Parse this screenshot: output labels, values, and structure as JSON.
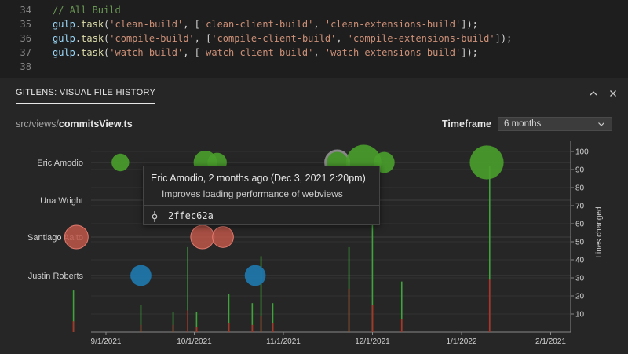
{
  "editor": {
    "lines": [
      {
        "num": "34",
        "tokens": [
          {
            "t": "    // All Build",
            "c": "comment"
          }
        ]
      },
      {
        "num": "35",
        "tokens": [
          {
            "t": "    gulp",
            "c": "ident"
          },
          {
            "t": ".",
            "c": "punc"
          },
          {
            "t": "task",
            "c": "fn"
          },
          {
            "t": "(",
            "c": "punc"
          },
          {
            "t": "'clean-build'",
            "c": "str"
          },
          {
            "t": ", [",
            "c": "punc"
          },
          {
            "t": "'clean-client-build'",
            "c": "str"
          },
          {
            "t": ", ",
            "c": "punc"
          },
          {
            "t": "'clean-extensions-build'",
            "c": "str"
          },
          {
            "t": "]);",
            "c": "punc"
          }
        ]
      },
      {
        "num": "36",
        "tokens": [
          {
            "t": "    gulp",
            "c": "ident"
          },
          {
            "t": ".",
            "c": "punc"
          },
          {
            "t": "task",
            "c": "fn"
          },
          {
            "t": "(",
            "c": "punc"
          },
          {
            "t": "'compile-build'",
            "c": "str"
          },
          {
            "t": ", [",
            "c": "punc"
          },
          {
            "t": "'compile-client-build'",
            "c": "str"
          },
          {
            "t": ", ",
            "c": "punc"
          },
          {
            "t": "'compile-extensions-build'",
            "c": "str"
          },
          {
            "t": "]);",
            "c": "punc"
          }
        ]
      },
      {
        "num": "37",
        "tokens": [
          {
            "t": "    gulp",
            "c": "ident"
          },
          {
            "t": ".",
            "c": "punc"
          },
          {
            "t": "task",
            "c": "fn"
          },
          {
            "t": "(",
            "c": "punc"
          },
          {
            "t": "'watch-build'",
            "c": "str"
          },
          {
            "t": ", [",
            "c": "punc"
          },
          {
            "t": "'watch-client-build'",
            "c": "str"
          },
          {
            "t": ", ",
            "c": "punc"
          },
          {
            "t": "'watch-extensions-build'",
            "c": "str"
          },
          {
            "t": "]);",
            "c": "punc"
          }
        ]
      },
      {
        "num": "38",
        "tokens": []
      }
    ]
  },
  "panel": {
    "title": "GITLENS: VISUAL FILE HISTORY",
    "path_dir": "src/views/",
    "path_file": "commitsView.ts",
    "timeframe_label": "Timeframe",
    "timeframe_value": "6 months",
    "collapse_icon": "chevron-up-icon",
    "close_icon": "close-icon"
  },
  "tooltip": {
    "title": "Eric Amodio, 2 months ago (Dec 3, 2021 2:20pm)",
    "message": "Improves loading performance of webviews",
    "sha": "2ffec62a",
    "icon": "git-commit-icon"
  },
  "colors": {
    "Eric Amodio": "#4aa02c",
    "Una Wright": "#8e44ad",
    "Santiago Aalto": "#c0574a",
    "Justin Roberts": "#1f7ab0",
    "additions": "#3fa53a",
    "deletions": "#b2322a"
  },
  "chart_data": {
    "type": "scatter",
    "authors": [
      "Eric Amodio",
      "Una Wright",
      "Santiago Aalto",
      "Justin Roberts"
    ],
    "x_range": [
      "2021-09-01",
      "2022-01-01"
    ],
    "x_ticks": [
      "9/1/2021",
      "10/1/2021",
      "11/1/2021",
      "12/1/2021",
      "1/1/2022",
      "2/1/2021"
    ],
    "y2_label": "Lines changed",
    "y2_range": [
      0,
      105
    ],
    "y2_ticks": [
      10,
      20,
      30,
      40,
      50,
      60,
      70,
      80,
      90,
      100
    ],
    "commits": [
      {
        "author": "Eric Amodio",
        "date": "2021-09-11",
        "added": 0,
        "deleted": 0,
        "bubble": 1
      },
      {
        "author": "Eric Amodio",
        "date": "2021-10-10",
        "added": 0,
        "deleted": 0,
        "bubble": 3
      },
      {
        "author": "Eric Amodio",
        "date": "2021-10-14",
        "added": 0,
        "deleted": 0,
        "bubble": 1.5
      },
      {
        "author": "Eric Amodio",
        "date": "2021-11-24",
        "added": 0,
        "deleted": 0,
        "bubble": 3
      },
      {
        "author": "Eric Amodio",
        "date": "2021-12-03",
        "added": 0,
        "deleted": 0,
        "bubble": 10
      },
      {
        "author": "Eric Amodio",
        "date": "2021-12-10",
        "added": 0,
        "deleted": 0,
        "bubble": 2
      },
      {
        "author": "Eric Amodio",
        "date": "2022-01-14",
        "added": 0,
        "deleted": 0,
        "bubble": 9
      },
      {
        "author": "Santiago Aalto",
        "date": "2021-08-27",
        "added": 0,
        "deleted": 0,
        "bubble": 3
      },
      {
        "author": "Santiago Aalto",
        "date": "2021-10-09",
        "added": 0,
        "deleted": 0,
        "bubble": 3
      },
      {
        "author": "Santiago Aalto",
        "date": "2021-10-16",
        "added": 0,
        "deleted": 0,
        "bubble": 2
      },
      {
        "author": "Justin Roberts",
        "date": "2021-09-18",
        "added": 0,
        "deleted": 0,
        "bubble": 2
      },
      {
        "author": "Justin Roberts",
        "date": "2021-10-27",
        "added": 0,
        "deleted": 0,
        "bubble": 2
      }
    ],
    "bars": [
      {
        "date": "2021-08-26",
        "added": 23,
        "deleted": 6
      },
      {
        "date": "2021-09-18",
        "added": 15,
        "deleted": 4
      },
      {
        "date": "2021-09-29",
        "added": 11,
        "deleted": 4
      },
      {
        "date": "2021-10-04",
        "added": 47,
        "deleted": 12
      },
      {
        "date": "2021-10-07",
        "added": 11,
        "deleted": 3
      },
      {
        "date": "2021-10-18",
        "added": 21,
        "deleted": 5
      },
      {
        "date": "2021-10-26",
        "added": 16,
        "deleted": 4
      },
      {
        "date": "2021-10-29",
        "added": 42,
        "deleted": 9
      },
      {
        "date": "2021-11-02",
        "added": 16,
        "deleted": 5
      },
      {
        "date": "2021-11-28",
        "added": 47,
        "deleted": 24
      },
      {
        "date": "2021-12-06",
        "added": 90,
        "deleted": 15
      },
      {
        "date": "2021-12-16",
        "added": 28,
        "deleted": 7
      },
      {
        "date": "2022-01-15",
        "added": 92,
        "deleted": 29
      }
    ]
  }
}
